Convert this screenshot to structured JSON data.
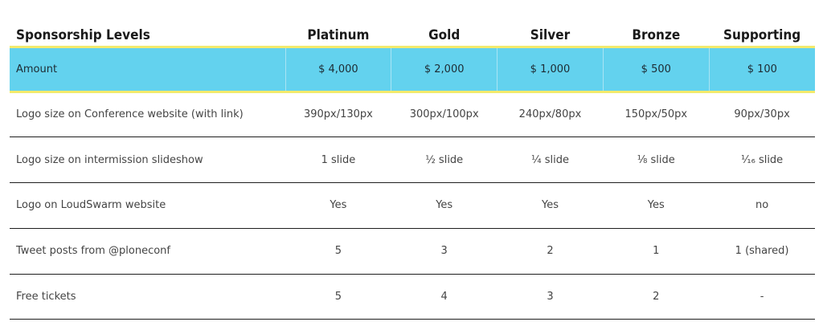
{
  "table": {
    "header": {
      "label": "Sponsorship Levels",
      "levels": [
        "Platinum",
        "Gold",
        "Silver",
        "Bronze",
        "Supporting"
      ]
    },
    "amount_row": {
      "label": "Amount",
      "values": [
        "$ 4,000",
        "$ 2,000",
        "$ 1,000",
        "$ 500",
        "$ 100"
      ]
    },
    "rows": [
      {
        "label": "Logo size on Conference website (with link)",
        "values": [
          "390px/130px",
          "300px/100px",
          "240px/80px",
          "150px/50px",
          "90px/30px"
        ]
      },
      {
        "label": "Logo size on intermission slideshow",
        "values": [
          "1 slide",
          "½ slide",
          "¼ slide",
          "⅛ slide",
          "¹⁄₁₆ slide"
        ]
      },
      {
        "label": "Logo on LoudSwarm website",
        "values": [
          "Yes",
          "Yes",
          "Yes",
          "Yes",
          "no"
        ]
      },
      {
        "label": "Tweet posts from @ploneconf",
        "values": [
          "5",
          "3",
          "2",
          "1",
          "1 (shared)"
        ]
      },
      {
        "label": "Free tickets",
        "values": [
          "5",
          "4",
          "3",
          "2",
          "-"
        ]
      }
    ]
  }
}
